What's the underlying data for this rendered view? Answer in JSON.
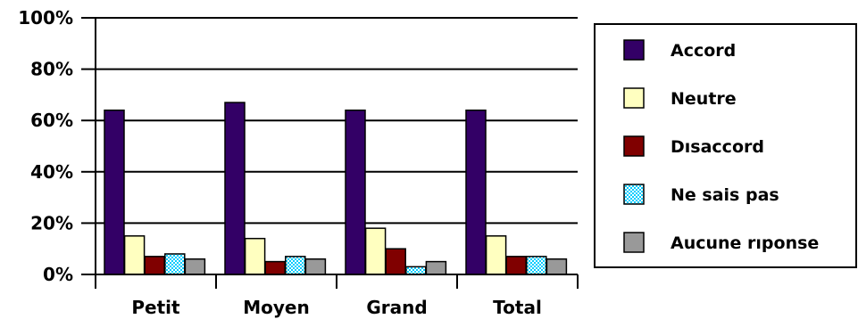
{
  "chart_data": {
    "type": "bar",
    "categories": [
      "Petit",
      "Moyen",
      "Grand",
      "Total"
    ],
    "series": [
      {
        "name": "Accord",
        "values": [
          64,
          67,
          64,
          64
        ],
        "color": "#330066",
        "pattern": "solid"
      },
      {
        "name": "Neutre",
        "values": [
          15,
          14,
          18,
          15
        ],
        "color": "#ffffc0",
        "pattern": "solid"
      },
      {
        "name": "Dısaccord",
        "values": [
          7,
          5,
          10,
          7
        ],
        "color": "#800000",
        "pattern": "solid"
      },
      {
        "name": "Ne sais pas",
        "values": [
          8,
          7,
          3,
          7
        ],
        "color": "#00ccff",
        "pattern": "diagonal-dots"
      },
      {
        "name": "Aucune rıponse",
        "values": [
          6,
          6,
          5,
          6
        ],
        "color": "#999999",
        "pattern": "solid"
      }
    ],
    "yaxis": {
      "ticks": [
        "0%",
        "20%",
        "40%",
        "60%",
        "80%",
        "100%"
      ],
      "tick_values": [
        0,
        20,
        40,
        60,
        80,
        100
      ]
    },
    "ylim": [
      0,
      100
    ],
    "grid": true,
    "legend": "right"
  }
}
